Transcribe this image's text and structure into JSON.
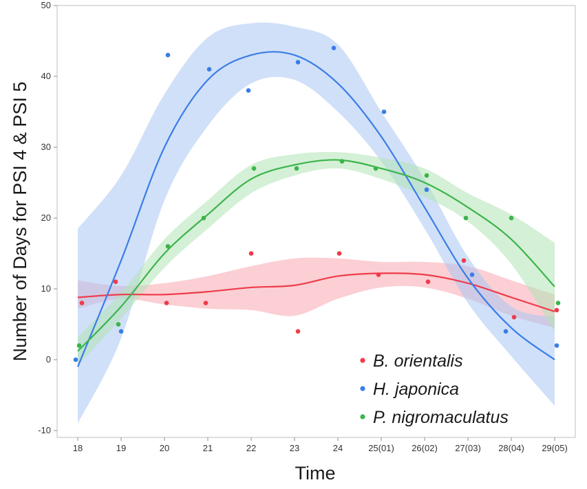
{
  "chart_data": {
    "type": "scatter",
    "xlabel": "Time",
    "ylabel": "Number of Days for PSI 4  & PSI 5",
    "x_categories": [
      "18",
      "19",
      "20",
      "21",
      "22",
      "23",
      "24",
      "25(01)",
      "26(02)",
      "27(03)",
      "28(04)",
      "29(05)"
    ],
    "ylim": [
      -10,
      50
    ],
    "yticks": [
      -10,
      0,
      10,
      20,
      30,
      40,
      50
    ],
    "grid": false,
    "legend_position": "bottom-right",
    "series": [
      {
        "name": "B. orientalis",
        "color": "#ef3b4a",
        "band_color": "#f7a7b0",
        "points": [
          [
            18,
            8
          ],
          [
            19,
            11
          ],
          [
            20,
            8
          ],
          [
            21,
            8
          ],
          [
            22,
            15
          ],
          [
            23,
            4
          ],
          [
            24,
            15
          ],
          [
            25,
            12
          ],
          [
            26,
            11
          ],
          [
            27,
            14
          ],
          [
            28,
            6
          ],
          [
            29,
            7
          ]
        ],
        "fit": [
          [
            18,
            8.8
          ],
          [
            19,
            9.2
          ],
          [
            20,
            9.2
          ],
          [
            21,
            9.6
          ],
          [
            22,
            10.2
          ],
          [
            23,
            10.5
          ],
          [
            24,
            11.8
          ],
          [
            25,
            12.2
          ],
          [
            26,
            12.0
          ],
          [
            27,
            10.8
          ],
          [
            28,
            8.8
          ],
          [
            29,
            6.8
          ]
        ],
        "band_upper": [
          [
            18,
            11.2
          ],
          [
            19,
            10.4
          ],
          [
            20,
            10.8
          ],
          [
            21,
            11.8
          ],
          [
            22,
            13.2
          ],
          [
            23,
            14.3
          ],
          [
            24,
            14.3
          ],
          [
            25,
            13.8
          ],
          [
            26,
            13.8
          ],
          [
            27,
            13.2
          ],
          [
            28,
            11.2
          ],
          [
            29,
            9.2
          ]
        ],
        "band_lower": [
          [
            18,
            7.2
          ],
          [
            19,
            8.6
          ],
          [
            20,
            7.8
          ],
          [
            21,
            7.2
          ],
          [
            22,
            7.0
          ],
          [
            23,
            6.2
          ],
          [
            24,
            8.6
          ],
          [
            25,
            10.2
          ],
          [
            26,
            10.2
          ],
          [
            27,
            8.6
          ],
          [
            28,
            6.2
          ],
          [
            29,
            4.5
          ]
        ]
      },
      {
        "name": "H. japonica",
        "color": "#3a7de8",
        "band_color": "#aac6f3",
        "points": [
          [
            18,
            0
          ],
          [
            19,
            4
          ],
          [
            20,
            43
          ],
          [
            21,
            41
          ],
          [
            22,
            38
          ],
          [
            23,
            42
          ],
          [
            24,
            44
          ],
          [
            25,
            35
          ],
          [
            26,
            24
          ],
          [
            27,
            12
          ],
          [
            28,
            4
          ],
          [
            29,
            2
          ]
        ],
        "fit": [
          [
            18,
            -1
          ],
          [
            19,
            14
          ],
          [
            20,
            30
          ],
          [
            21,
            39.5
          ],
          [
            22,
            43
          ],
          [
            23,
            43
          ],
          [
            24,
            39
          ],
          [
            25,
            31.5
          ],
          [
            26,
            21.5
          ],
          [
            27,
            11.5
          ],
          [
            28,
            4.5
          ],
          [
            29,
            0
          ]
        ],
        "band_upper": [
          [
            18,
            18.5
          ],
          [
            19,
            26
          ],
          [
            20,
            37.5
          ],
          [
            21,
            45.5
          ],
          [
            22,
            47.5
          ],
          [
            23,
            47
          ],
          [
            24,
            44.5
          ],
          [
            25,
            35
          ],
          [
            26,
            25.5
          ],
          [
            27,
            14.5
          ],
          [
            28,
            7.5
          ],
          [
            29,
            6
          ]
        ],
        "band_lower": [
          [
            18,
            -9
          ],
          [
            19,
            3
          ],
          [
            20,
            22.5
          ],
          [
            21,
            33
          ],
          [
            22,
            39
          ],
          [
            23,
            39.5
          ],
          [
            24,
            35
          ],
          [
            25,
            28
          ],
          [
            26,
            18.5
          ],
          [
            27,
            8
          ],
          [
            28,
            0.5
          ],
          [
            29,
            -6.5
          ]
        ]
      },
      {
        "name": "P. nigromaculatus",
        "color": "#3cb44b",
        "band_color": "#b0e3b4",
        "points": [
          [
            18,
            2
          ],
          [
            19,
            5
          ],
          [
            20,
            16
          ],
          [
            21,
            20
          ],
          [
            22,
            27
          ],
          [
            23,
            27
          ],
          [
            24,
            28
          ],
          [
            25,
            27
          ],
          [
            26,
            26
          ],
          [
            27,
            20
          ],
          [
            28,
            20
          ],
          [
            29,
            8
          ]
        ],
        "fit": [
          [
            18,
            1.2
          ],
          [
            19,
            7.5
          ],
          [
            20,
            15
          ],
          [
            21,
            20.5
          ],
          [
            22,
            25.5
          ],
          [
            23,
            27.5
          ],
          [
            24,
            28.2
          ],
          [
            25,
            27
          ],
          [
            26,
            25
          ],
          [
            27,
            21.5
          ],
          [
            28,
            17
          ],
          [
            29,
            10.3
          ]
        ],
        "band_upper": [
          [
            18,
            3.2
          ],
          [
            19,
            9.5
          ],
          [
            20,
            17
          ],
          [
            21,
            22.5
          ],
          [
            22,
            27.5
          ],
          [
            23,
            29
          ],
          [
            24,
            29.3
          ],
          [
            25,
            28.5
          ],
          [
            26,
            27
          ],
          [
            27,
            23.5
          ],
          [
            28,
            20.5
          ],
          [
            29,
            16.5
          ]
        ],
        "band_lower": [
          [
            18,
            -0.8
          ],
          [
            19,
            5.8
          ],
          [
            20,
            13
          ],
          [
            21,
            18.5
          ],
          [
            22,
            23.5
          ],
          [
            23,
            26
          ],
          [
            24,
            27
          ],
          [
            25,
            25.5
          ],
          [
            26,
            23
          ],
          [
            27,
            19.5
          ],
          [
            28,
            13.5
          ],
          [
            29,
            4
          ]
        ]
      }
    ]
  }
}
